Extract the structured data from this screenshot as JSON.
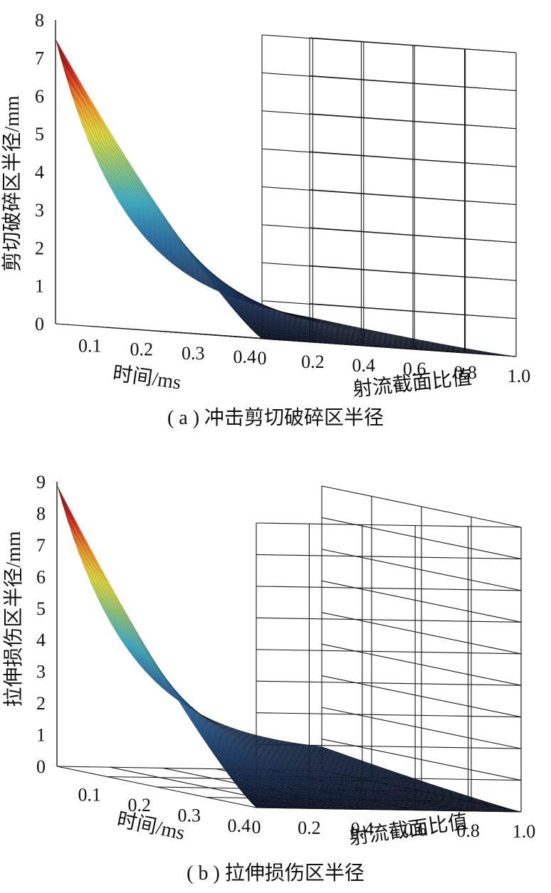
{
  "chart_data": [
    {
      "type": "surface",
      "zlabel": "剪切破碎区半径/mm",
      "xlabel": "时间/ms",
      "ylabel": "射流截面比值",
      "caption": "( a ) 冲击剪切破碎区半径",
      "x_ticks": [
        "0.1",
        "0.2",
        "0.3",
        "0.4"
      ],
      "y_ticks": [
        "0",
        "0.2",
        "0.4",
        "0.6",
        "0.8",
        "1.0"
      ],
      "z_ticks": [
        "0",
        "1",
        "2",
        "3",
        "4",
        "5",
        "6",
        "7",
        "8"
      ],
      "xlim": [
        0,
        0.4
      ],
      "ylim": [
        0,
        1.0
      ],
      "zlim": [
        0,
        8
      ],
      "peak": 7.5,
      "grid": true,
      "colormap": "jet-like"
    },
    {
      "type": "surface",
      "zlabel": "拉伸损伤区半径/mm",
      "xlabel": "时间/ms",
      "ylabel": "射流截面比值",
      "caption": "( b ) 拉伸损伤区半径",
      "x_ticks": [
        "0.1",
        "0.2",
        "0.3",
        "0.4"
      ],
      "y_ticks": [
        "0",
        "0.2",
        "0.4",
        "0.6",
        "0.8",
        "1.0"
      ],
      "z_ticks": [
        "0",
        "1",
        "2",
        "3",
        "4",
        "5",
        "6",
        "7",
        "8",
        "9"
      ],
      "xlim": [
        0,
        0.4
      ],
      "ylim": [
        0,
        1.0
      ],
      "zlim": [
        0,
        9
      ],
      "peak": 8.9,
      "grid": true,
      "colormap": "jet-like"
    }
  ]
}
